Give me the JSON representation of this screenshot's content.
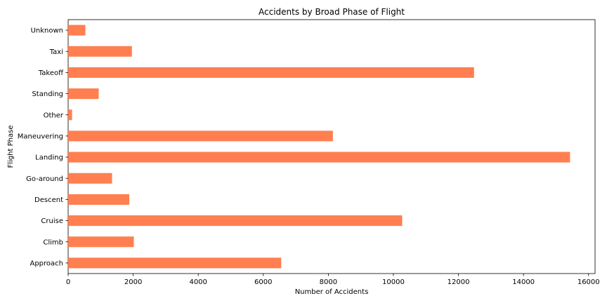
{
  "chart_data": {
    "type": "bar",
    "orientation": "horizontal",
    "title": "Accidents by Broad Phase of Flight",
    "xlabel": "Number of Accidents",
    "ylabel": "Flight Phase",
    "categories": [
      "Approach",
      "Climb",
      "Cruise",
      "Descent",
      "Go-around",
      "Landing",
      "Maneuvering",
      "Other",
      "Standing",
      "Takeoff",
      "Taxi",
      "Unknown"
    ],
    "values": [
      6550,
      2020,
      10270,
      1880,
      1350,
      15430,
      8140,
      120,
      940,
      12480,
      1960,
      530
    ],
    "xlim": [
      0,
      16200
    ],
    "xticks": [
      0,
      2000,
      4000,
      6000,
      8000,
      10000,
      12000,
      14000,
      16000
    ],
    "xtick_labels": [
      "0",
      "2000",
      "4000",
      "6000",
      "8000",
      "10000",
      "12000",
      "14000",
      "16000"
    ],
    "bar_color": "#ff7f50",
    "grid": false,
    "legend": false
  }
}
